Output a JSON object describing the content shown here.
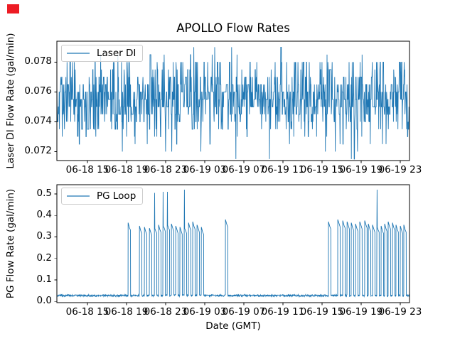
{
  "figure": {
    "background": "#ffffff",
    "marker_color": "#ed1c24"
  },
  "chart_data": [
    {
      "type": "line",
      "title": "APOLLO Flow Rates",
      "ylabel": "Laser DI Flow Rate (gal/min)",
      "legend": {
        "label": "Laser DI",
        "position": "upper left"
      },
      "line_color": "#1f77b4",
      "grid": false,
      "ylim": [
        0.0714,
        0.0794
      ],
      "ytick_values": [
        0.072,
        0.074,
        0.076,
        0.078
      ],
      "ytick_labels": [
        "0.072",
        "0.074",
        "0.076",
        "0.078"
      ],
      "xlim_hours": [
        11.87,
        47.95
      ],
      "xtick_hours": [
        15,
        19,
        23,
        27,
        31,
        35,
        39,
        43,
        47
      ],
      "xtick_labels": [
        "06-18 15",
        "06-18 19",
        "06-18 23",
        "06-19 03",
        "06-19 07",
        "06-19 11",
        "06-19 15",
        "06-19 19",
        "06-19 23"
      ],
      "series": {
        "name": "Laser DI",
        "kind": "quantized-noise",
        "mean": 0.0755,
        "step": 0.0005,
        "observed_min": 0.0715,
        "observed_max": 0.079,
        "level_offsets": [
          -8,
          -7,
          -6,
          -5,
          -4,
          -3,
          -2,
          -1,
          0,
          1,
          2,
          3,
          4,
          5,
          6,
          7
        ],
        "level_weights": [
          0.25,
          0.5,
          1.2,
          2.0,
          3.2,
          5.0,
          7.5,
          10.5,
          12,
          10.5,
          7.5,
          5.2,
          3.6,
          4.2,
          1.0,
          0.35
        ],
        "repeat_prob": 0.25,
        "n_points": 1250,
        "seed": 20240618
      }
    },
    {
      "type": "line",
      "title": "",
      "ylabel": "PG Flow Rate (gal/min)",
      "xlabel": "Date (GMT)",
      "legend": {
        "label": "PG Loop",
        "position": "upper left"
      },
      "line_color": "#1f77b4",
      "grid": false,
      "ylim": [
        -0.006,
        0.543
      ],
      "ytick_values": [
        0.0,
        0.1,
        0.2,
        0.3,
        0.4,
        0.5
      ],
      "ytick_labels": [
        "0.0",
        "0.1",
        "0.2",
        "0.3",
        "0.4",
        "0.5"
      ],
      "xlim_hours": [
        11.87,
        47.95
      ],
      "xtick_hours": [
        15,
        19,
        23,
        27,
        31,
        35,
        39,
        43,
        47
      ],
      "xtick_labels": [
        "06-18 15",
        "06-18 19",
        "06-18 23",
        "06-19 03",
        "06-19 07",
        "06-19 11",
        "06-19 15",
        "06-19 19",
        "06-19 23"
      ],
      "series": {
        "name": "PG Loop",
        "kind": "baseline-pulses",
        "baseline": 0.027,
        "baseline_noise": 0.009,
        "pulse_width_hours": 0.26,
        "n_points": 1400,
        "seed": 777,
        "pulses": [
          {
            "t": 19.15,
            "h": 0.36
          },
          {
            "t": 20.31,
            "h": 0.345
          },
          {
            "t": 20.82,
            "h": 0.34
          },
          {
            "t": 21.33,
            "h": 0.335
          },
          {
            "t": 21.84,
            "h": 0.345,
            "spike": 0.505
          },
          {
            "t": 22.27,
            "h": 0.35
          },
          {
            "t": 22.71,
            "h": 0.355,
            "spike": 0.51
          },
          {
            "t": 23.15,
            "h": 0.36,
            "spike": 0.51
          },
          {
            "t": 23.58,
            "h": 0.355
          },
          {
            "t": 24.02,
            "h": 0.345
          },
          {
            "t": 24.45,
            "h": 0.34
          },
          {
            "t": 24.89,
            "h": 0.345,
            "spike": 0.52
          },
          {
            "t": 25.33,
            "h": 0.36
          },
          {
            "t": 25.76,
            "h": 0.365
          },
          {
            "t": 26.2,
            "h": 0.35
          },
          {
            "t": 26.64,
            "h": 0.34
          },
          {
            "t": 29.11,
            "h": 0.375
          },
          {
            "t": 39.65,
            "h": 0.365
          },
          {
            "t": 40.6,
            "h": 0.375
          },
          {
            "t": 41.11,
            "h": 0.37
          },
          {
            "t": 41.55,
            "h": 0.365
          },
          {
            "t": 41.98,
            "h": 0.36
          },
          {
            "t": 42.42,
            "h": 0.355
          },
          {
            "t": 42.85,
            "h": 0.365
          },
          {
            "t": 43.36,
            "h": 0.37
          },
          {
            "t": 43.73,
            "h": 0.355
          },
          {
            "t": 44.16,
            "h": 0.35
          },
          {
            "t": 44.6,
            "h": 0.35,
            "spike": 0.52
          },
          {
            "t": 45.04,
            "h": 0.345
          },
          {
            "t": 45.4,
            "h": 0.355
          },
          {
            "t": 45.76,
            "h": 0.365
          },
          {
            "t": 46.2,
            "h": 0.36
          },
          {
            "t": 46.56,
            "h": 0.35
          },
          {
            "t": 47.0,
            "h": 0.345
          },
          {
            "t": 47.36,
            "h": 0.35
          }
        ]
      }
    }
  ]
}
